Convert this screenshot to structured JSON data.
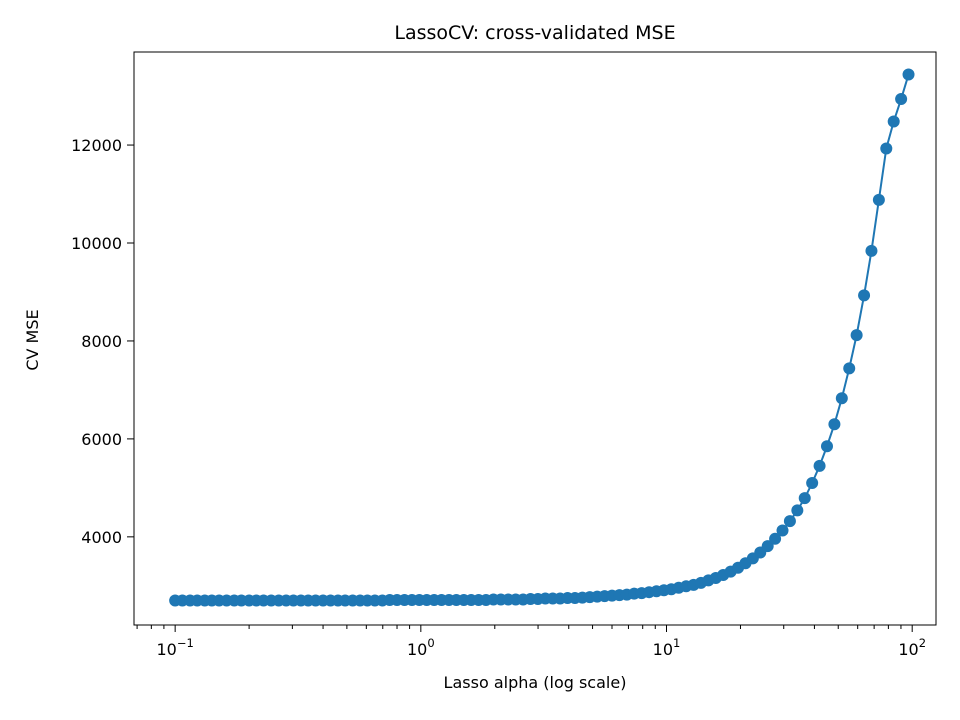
{
  "chart_data": {
    "type": "line",
    "title": "LassoCV: cross-validated MSE",
    "xlabel": "Lasso alpha (log scale)",
    "ylabel": "CV MSE",
    "xscale": "log",
    "xlim": [
      0.068,
      125
    ],
    "ylim": [
      2200,
      13900
    ],
    "grid": false,
    "legend": "none",
    "x_ticks": [
      {
        "value": 0.1,
        "base": "10",
        "exp": "−1"
      },
      {
        "value": 1,
        "base": "10",
        "exp": "0"
      },
      {
        "value": 10,
        "base": "10",
        "exp": "1"
      },
      {
        "value": 100,
        "base": "10",
        "exp": "2"
      }
    ],
    "y_ticks": [
      4000,
      6000,
      8000,
      10000,
      12000
    ],
    "series": [
      {
        "color": "#1f77b4",
        "marker": "circle",
        "x": [
          0.1,
          0.107,
          0.115,
          0.123,
          0.132,
          0.141,
          0.151,
          0.162,
          0.174,
          0.186,
          0.2,
          0.214,
          0.229,
          0.246,
          0.264,
          0.283,
          0.303,
          0.325,
          0.348,
          0.373,
          0.4,
          0.429,
          0.46,
          0.492,
          0.528,
          0.566,
          0.606,
          0.65,
          0.697,
          0.747,
          0.8,
          0.858,
          0.92,
          0.986,
          1.057,
          1.133,
          1.214,
          1.302,
          1.395,
          1.496,
          1.603,
          1.719,
          1.842,
          1.975,
          2.117,
          2.269,
          2.433,
          2.608,
          2.795,
          2.996,
          3.212,
          3.443,
          3.69,
          3.956,
          4.24,
          4.545,
          4.872,
          5.223,
          5.598,
          6.001,
          6.433,
          6.896,
          7.392,
          7.924,
          8.494,
          9.105,
          9.761,
          10.46,
          11.21,
          12.02,
          12.89,
          13.81,
          14.81,
          15.87,
          17.01,
          18.24,
          19.55,
          20.96,
          22.46,
          24.08,
          25.81,
          27.67,
          29.66,
          31.79,
          34.08,
          36.53,
          39.16,
          41.98,
          45.0,
          48.24,
          51.71,
          55.43,
          59.41,
          63.69,
          68.27,
          73.18,
          78.45,
          84.09,
          90.14,
          96.63
        ],
        "y": [
          2700,
          2700,
          2700,
          2700,
          2700,
          2700,
          2700,
          2700,
          2700,
          2700,
          2700,
          2700,
          2700,
          2700,
          2700,
          2700,
          2700,
          2700,
          2700,
          2700,
          2700,
          2700,
          2700,
          2700,
          2700,
          2700,
          2700,
          2700,
          2700,
          2710,
          2710,
          2710,
          2710,
          2710,
          2710,
          2710,
          2710,
          2710,
          2710,
          2710,
          2710,
          2710,
          2710,
          2720,
          2720,
          2720,
          2720,
          2720,
          2730,
          2730,
          2740,
          2740,
          2740,
          2750,
          2750,
          2760,
          2770,
          2780,
          2790,
          2800,
          2810,
          2820,
          2840,
          2850,
          2870,
          2890,
          2910,
          2930,
          2960,
          2990,
          3020,
          3060,
          3110,
          3160,
          3220,
          3290,
          3370,
          3460,
          3560,
          3680,
          3810,
          3960,
          4130,
          4320,
          4540,
          4790,
          5100,
          5450,
          5850,
          6300,
          6830,
          7440,
          8120,
          8930,
          9840,
          10880,
          11930,
          12480,
          12940,
          13440
        ]
      }
    ]
  }
}
